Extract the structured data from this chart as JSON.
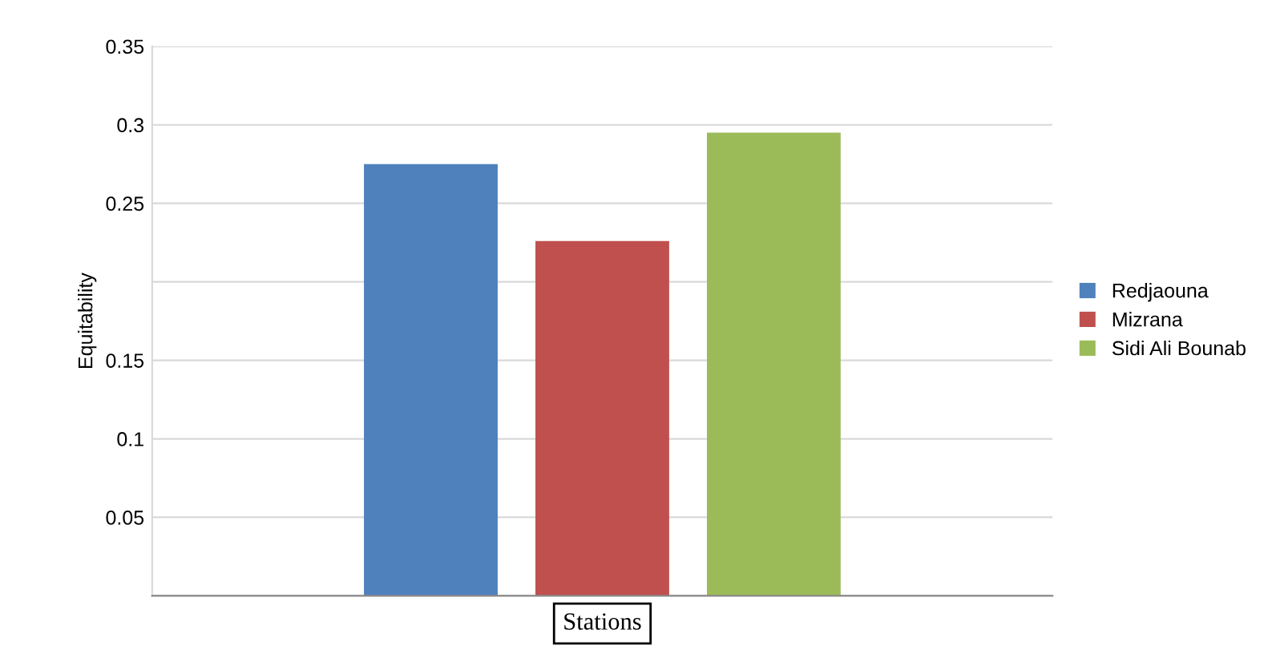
{
  "chart_data": {
    "type": "bar",
    "categories": [
      null
    ],
    "xlabel": "Stations",
    "ylabel": "Equitability",
    "series": [
      {
        "name": "Redjaouna",
        "color": "#4f81bd",
        "values": [
          0.275
        ]
      },
      {
        "name": "Mizrana",
        "color": "#c0504d",
        "values": [
          0.226
        ]
      },
      {
        "name": "Sidi Ali Bounab",
        "color": "#9bbb59",
        "values": [
          0.295
        ]
      }
    ],
    "ylim": [
      0,
      0.35
    ],
    "yticks": [
      {
        "value": 0,
        "label": null
      },
      0.05,
      0.1,
      0.15,
      {
        "value": 0.2,
        "label": null
      },
      0.25,
      0.3,
      0.35
    ],
    "grid": "y",
    "legend": "right"
  }
}
